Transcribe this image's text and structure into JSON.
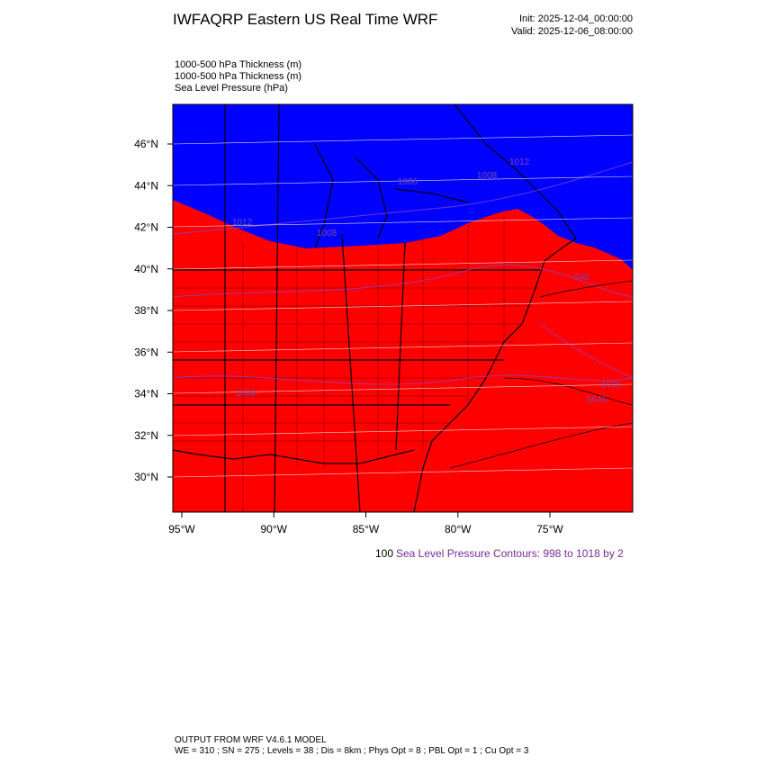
{
  "header": {
    "title": "IWFAQRP Eastern US Real Time WRF",
    "init": "Init: 2025-12-04_00:00:00",
    "valid": "Valid: 2025-12-06_08:00:00"
  },
  "fields": [
    "1000-500 hPa Thickness   (m)",
    "1000-500 hPa Thickness   (m)",
    "Sea Level Pressure   (hPa)"
  ],
  "map": {
    "lat_ticks": [
      {
        "value": 46,
        "label": "46°N"
      },
      {
        "value": 44,
        "label": "44°N"
      },
      {
        "value": 42,
        "label": "42°N"
      },
      {
        "value": 40,
        "label": "40°N"
      },
      {
        "value": 38,
        "label": "38°N"
      },
      {
        "value": 36,
        "label": "36°N"
      },
      {
        "value": 34,
        "label": "34°N"
      },
      {
        "value": 32,
        "label": "32°N"
      },
      {
        "value": 30,
        "label": "30°N"
      }
    ],
    "lon_ticks": [
      {
        "value": -95,
        "label": "95°W"
      },
      {
        "value": -90,
        "label": "90°W"
      },
      {
        "value": -85,
        "label": "85°W"
      },
      {
        "value": -80,
        "label": "80°W"
      },
      {
        "value": -75,
        "label": "75°W"
      }
    ],
    "contour_labels": [
      "1012",
      "1008",
      "1006",
      "1012",
      "1008",
      "546",
      "1016",
      "5646",
      "1008"
    ]
  },
  "legend": {
    "scale": "100",
    "contours": "Sea Level Pressure Contours: 998 to 1018 by 2"
  },
  "footer": {
    "line1": "OUTPUT FROM WRF V4.6.1 MODEL",
    "line2": "WE = 310 ; SN = 275 ; Levels = 38 ; Dis = 8km ; Phys Opt = 8 ; PBL Opt = 1 ; Cu Opt = 3"
  }
}
